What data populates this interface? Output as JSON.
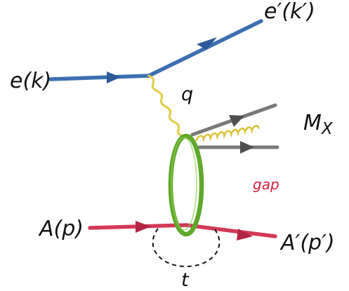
{
  "labels": {
    "electron_in": "e(k)",
    "electron_out": "e′(k′)",
    "photon": "q",
    "hadronic_system": "M",
    "hadronic_system_sub": "X",
    "rapidity_gap": "gap",
    "nucleus_in": "A(p)",
    "nucleus_out": "A′(p′)",
    "momentum_transfer": "t"
  },
  "colors": {
    "electron_line": "#3c6fb0",
    "photon_line": "#e2cf4e",
    "gluon_line": "#d9c23a",
    "quark_line": "#7a7a7a",
    "pomeron_ring": "#5fa82a",
    "nucleus_line": "#d23a57",
    "gap_text": "#d6213e",
    "text": "#111111"
  }
}
